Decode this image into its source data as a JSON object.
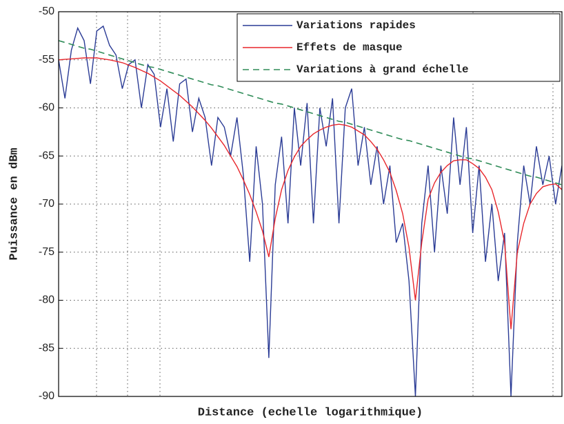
{
  "chart_data": {
    "type": "line",
    "xlabel": "Distance (echelle logarithmique)",
    "ylabel": "Puissance en dBm",
    "categories": [
      null,
      null,
      null,
      null,
      null,
      null,
      null,
      null,
      null,
      null,
      null,
      null,
      null,
      null,
      null,
      null,
      null,
      null,
      null,
      null,
      null,
      null,
      null,
      null,
      null,
      null,
      null,
      null,
      null,
      null,
      null,
      null,
      null,
      null,
      null,
      null,
      null,
      null,
      null,
      null,
      null,
      null,
      null,
      null,
      null,
      null,
      null,
      null,
      null,
      null,
      null,
      null,
      null,
      null,
      null,
      null,
      null,
      null,
      null,
      null,
      null,
      null,
      null,
      null,
      null,
      null,
      null,
      null,
      null,
      null,
      null,
      null,
      null,
      null,
      null,
      null,
      null,
      null,
      null,
      null
    ],
    "ylim": [
      -90,
      -50
    ],
    "yticks": [
      -90,
      -85,
      -80,
      -75,
      -70,
      -65,
      -60,
      -55,
      -50
    ],
    "grid": true,
    "legend": "upper right",
    "series": [
      {
        "name": "Variations rapides",
        "color": "#2a3b95",
        "dash": "solid",
        "values": [
          -55,
          -59,
          -54,
          -51.7,
          -53,
          -57.5,
          -52,
          -51.5,
          -53.5,
          -54.5,
          -58,
          -55.5,
          -55,
          -60,
          -55.5,
          -56.5,
          -62,
          -58,
          -63.5,
          -57.5,
          -57,
          -62.5,
          -59,
          -61,
          -66,
          -61,
          -62,
          -65,
          -61,
          -67,
          -76,
          -64,
          -70,
          -86,
          -68,
          -63,
          -72,
          -60,
          -66,
          -59.5,
          -72,
          -60,
          -64,
          -59,
          -72,
          -60,
          -58,
          -66,
          -62,
          -68,
          -64,
          -70,
          -66,
          -74,
          -72,
          -78,
          -90,
          -72,
          -66,
          -75,
          -66,
          -71,
          -61,
          -68,
          -62,
          -73,
          -66,
          -76,
          -70,
          -78,
          -73,
          -90,
          -74,
          -66,
          -70,
          -64,
          -68,
          -65,
          -70,
          -66
        ]
      },
      {
        "name": "Effets de masque",
        "color": "#e8262b",
        "dash": "solid",
        "values": [
          -55,
          -54.95,
          -54.9,
          -54.85,
          -54.8,
          -54.8,
          -54.8,
          -54.9,
          -55,
          -55.15,
          -55.3,
          -55.55,
          -55.8,
          -56.1,
          -56.4,
          -56.8,
          -57.2,
          -57.7,
          -58.2,
          -58.7,
          -59.3,
          -59.9,
          -60.6,
          -61.3,
          -62.1,
          -63,
          -63.9,
          -65,
          -66.1,
          -67.5,
          -69,
          -70.8,
          -72.8,
          -75.5,
          -71.5,
          -68.5,
          -66.5,
          -65.1,
          -64,
          -63.3,
          -62.7,
          -62.3,
          -62,
          -61.8,
          -61.7,
          -61.8,
          -62,
          -62.4,
          -62.8,
          -63.5,
          -64.3,
          -65.4,
          -66.7,
          -68.6,
          -71,
          -74.5,
          -80,
          -74,
          -69.5,
          -67.8,
          -66.7,
          -66,
          -65.5,
          -65.4,
          -65.4,
          -65.8,
          -66.3,
          -67.2,
          -68.5,
          -70.8,
          -74,
          -83,
          -75,
          -72,
          -70,
          -68.9,
          -68.2,
          -68,
          -67.9,
          -68.5
        ]
      },
      {
        "name": "Variations à grand échelle",
        "color": "#2e8b57",
        "dash": "dashed",
        "values": [
          -53.0,
          -53.2,
          -53.4,
          -53.6,
          -53.8,
          -53.9,
          -54.1,
          -54.3,
          -54.5,
          -54.7,
          -54.9,
          -55.1,
          -55.3,
          -55.5,
          -55.7,
          -55.8,
          -56.0,
          -56.2,
          -56.4,
          -56.6,
          -56.8,
          -57.0,
          -57.2,
          -57.4,
          -57.6,
          -57.7,
          -57.9,
          -58.1,
          -58.3,
          -58.5,
          -58.7,
          -58.9,
          -59.1,
          -59.3,
          -59.5,
          -59.6,
          -59.8,
          -60.0,
          -60.2,
          -60.4,
          -60.6,
          -60.8,
          -61.0,
          -61.2,
          -61.4,
          -61.5,
          -61.7,
          -61.9,
          -62.1,
          -62.3,
          -62.5,
          -62.7,
          -62.9,
          -63.1,
          -63.3,
          -63.4,
          -63.6,
          -63.8,
          -64.0,
          -64.2,
          -64.4,
          -64.6,
          -64.8,
          -65.0,
          -65.2,
          -65.3,
          -65.5,
          -65.7,
          -65.9,
          -66.1,
          -66.3,
          -66.5,
          -66.7,
          -66.9,
          -67.1,
          -67.2,
          -67.4,
          -67.6,
          -67.8,
          -68.0
        ]
      }
    ]
  }
}
